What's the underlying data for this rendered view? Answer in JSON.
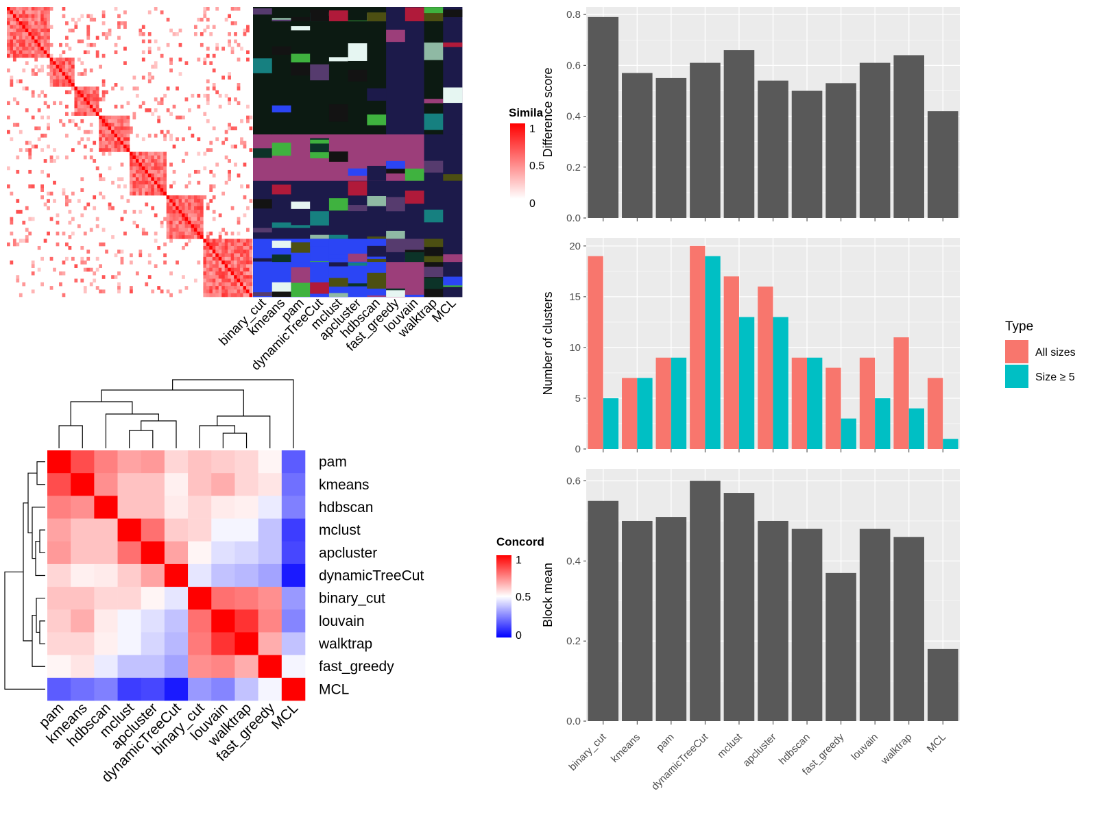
{
  "methods_similarity_cols": [
    "binary_cut",
    "kmeans",
    "pam",
    "dynamicTreeCut",
    "mclust",
    "apcluster",
    "hdbscan",
    "fast_greedy",
    "louvain",
    "walktrap",
    "MCL"
  ],
  "similarity_legend": {
    "title": "Simila",
    "ticks": [
      "1",
      "0.5",
      "0"
    ],
    "colors": [
      "#FF0000",
      "#FFFFFF"
    ]
  },
  "concordance_legend": {
    "title": "Concord",
    "ticks": [
      "1",
      "0.5",
      "0"
    ],
    "colors": [
      "#FF0000",
      "#FFFFFF",
      "#0000FF"
    ]
  },
  "type_legend": {
    "title": "Type",
    "items": [
      {
        "label": "All sizes",
        "color": "#F8766D"
      },
      {
        "label": "Size ≥ 5",
        "color": "#00BFC4"
      }
    ]
  },
  "chart_data": [
    {
      "type": "heatmap",
      "title": "",
      "order": [
        "pam",
        "kmeans",
        "hdbscan",
        "mclust",
        "apcluster",
        "dynamicTreeCut",
        "binary_cut",
        "louvain",
        "walktrap",
        "fast_greedy",
        "MCL"
      ],
      "matrix": [
        [
          1.0,
          0.85,
          0.75,
          0.68,
          0.7,
          0.58,
          0.62,
          0.6,
          0.58,
          0.52,
          0.18
        ],
        [
          0.85,
          1.0,
          0.72,
          0.62,
          0.62,
          0.53,
          0.62,
          0.66,
          0.58,
          0.55,
          0.22
        ],
        [
          0.75,
          0.72,
          1.0,
          0.62,
          0.62,
          0.54,
          0.58,
          0.54,
          0.53,
          0.46,
          0.25
        ],
        [
          0.68,
          0.62,
          0.62,
          1.0,
          0.78,
          0.6,
          0.58,
          0.48,
          0.48,
          0.38,
          0.12
        ],
        [
          0.7,
          0.62,
          0.62,
          0.78,
          1.0,
          0.68,
          0.52,
          0.44,
          0.42,
          0.38,
          0.14
        ],
        [
          0.58,
          0.53,
          0.54,
          0.6,
          0.68,
          1.0,
          0.45,
          0.38,
          0.36,
          0.32,
          0.05
        ],
        [
          0.62,
          0.62,
          0.58,
          0.58,
          0.52,
          0.45,
          1.0,
          0.78,
          0.76,
          0.72,
          0.3
        ],
        [
          0.6,
          0.66,
          0.54,
          0.48,
          0.44,
          0.38,
          0.78,
          1.0,
          0.9,
          0.74,
          0.26
        ],
        [
          0.58,
          0.58,
          0.53,
          0.48,
          0.42,
          0.36,
          0.76,
          0.9,
          1.0,
          0.66,
          0.38
        ],
        [
          0.52,
          0.55,
          0.46,
          0.38,
          0.38,
          0.32,
          0.72,
          0.74,
          0.66,
          1.0,
          0.48
        ],
        [
          0.18,
          0.22,
          0.25,
          0.12,
          0.14,
          0.05,
          0.3,
          0.26,
          0.38,
          0.48,
          1.0
        ]
      ]
    },
    {
      "type": "bar",
      "categories": [
        "binary_cut",
        "kmeans",
        "pam",
        "dynamicTreeCut",
        "mclust",
        "apcluster",
        "hdbscan",
        "fast_greedy",
        "louvain",
        "walktrap",
        "MCL"
      ],
      "values": [
        0.79,
        0.57,
        0.55,
        0.61,
        0.66,
        0.54,
        0.5,
        0.53,
        0.61,
        0.64,
        0.42
      ],
      "xlabel": "",
      "ylabel": "Difference score",
      "ylim": [
        0,
        0.83
      ],
      "yticks": [
        "0.0",
        "0.2",
        "0.4",
        "0.6",
        "0.8"
      ]
    },
    {
      "type": "bar",
      "categories": [
        "binary_cut",
        "kmeans",
        "pam",
        "dynamicTreeCut",
        "mclust",
        "apcluster",
        "hdbscan",
        "fast_greedy",
        "louvain",
        "walktrap",
        "MCL"
      ],
      "series": [
        {
          "name": "All sizes",
          "values": [
            19,
            7,
            9,
            20,
            17,
            16,
            9,
            8,
            9,
            11,
            7
          ]
        },
        {
          "name": "Size ≥ 5",
          "values": [
            5,
            7,
            9,
            19,
            13,
            13,
            9,
            3,
            5,
            4,
            1
          ]
        }
      ],
      "xlabel": "",
      "ylabel": "Number of clusters",
      "ylim": [
        0,
        20.8
      ],
      "yticks": [
        "0",
        "5",
        "10",
        "15",
        "20"
      ],
      "legend": "right"
    },
    {
      "type": "bar",
      "categories": [
        "binary_cut",
        "kmeans",
        "pam",
        "dynamicTreeCut",
        "mclust",
        "apcluster",
        "hdbscan",
        "fast_greedy",
        "louvain",
        "walktrap",
        "MCL"
      ],
      "values": [
        0.55,
        0.5,
        0.51,
        0.6,
        0.57,
        0.5,
        0.48,
        0.37,
        0.48,
        0.46,
        0.18
      ],
      "xlabel": "",
      "ylabel": "Block mean",
      "ylim": [
        0,
        0.63
      ],
      "yticks": [
        "0.0",
        "0.2",
        "0.4",
        "0.6"
      ]
    }
  ]
}
